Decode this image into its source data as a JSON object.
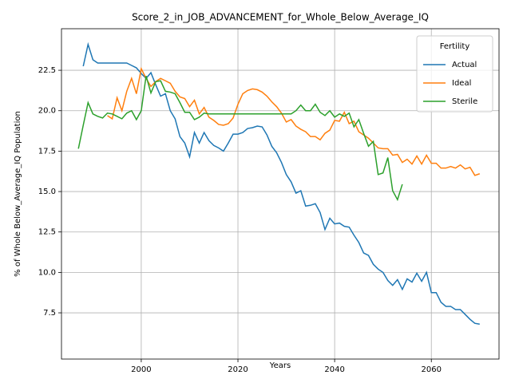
{
  "chart_data": {
    "type": "line",
    "title": "Score_2_in_JOB_ADVANCEMENT_for_Whole_Below_Average_IQ",
    "x_label": "Years",
    "y_label": "% of Whole Below_Average_IQ Population",
    "x": [
      1987,
      1988,
      1989,
      1990,
      1991,
      1992,
      1993,
      1994,
      1995,
      1996,
      1997,
      1998,
      1999,
      2000,
      2001,
      2002,
      2003,
      2004,
      2005,
      2006,
      2007,
      2008,
      2009,
      2010,
      2011,
      2012,
      2013,
      2014,
      2015,
      2016,
      2017,
      2018,
      2019,
      2020,
      2021,
      2022,
      2023,
      2024,
      2025,
      2026,
      2027,
      2028,
      2029,
      2030,
      2031,
      2032,
      2033,
      2034,
      2035,
      2036,
      2037,
      2038,
      2039,
      2040,
      2041,
      2042,
      2043,
      2044,
      2045,
      2046,
      2047,
      2048,
      2049,
      2050,
      2051,
      2052,
      2053,
      2054,
      2055,
      2056,
      2057,
      2058,
      2059,
      2060,
      2061,
      2062,
      2063,
      2064,
      2065,
      2066,
      2067,
      2068,
      2069,
      2070
    ],
    "series": [
      {
        "name": "Actual",
        "color": "#1f77b4",
        "values": [
          null,
          22.75,
          24.1,
          23.15,
          22.95,
          22.95,
          22.95,
          22.95,
          22.95,
          22.95,
          22.95,
          22.8,
          22.65,
          22.3,
          22.0,
          22.35,
          21.6,
          20.9,
          21.05,
          20.0,
          19.5,
          18.4,
          18.0,
          17.15,
          18.65,
          18.0,
          18.65,
          18.15,
          17.85,
          17.7,
          17.5,
          18.0,
          18.55,
          18.55,
          18.65,
          18.9,
          18.95,
          19.05,
          19.0,
          18.5,
          17.8,
          17.4,
          16.8,
          16.05,
          15.6,
          14.9,
          15.05,
          14.1,
          14.15,
          14.25,
          13.7,
          12.65,
          13.35,
          13.0,
          13.05,
          12.85,
          12.8,
          12.3,
          11.85,
          11.2,
          11.05,
          10.5,
          10.2,
          10.0,
          9.5,
          9.2,
          9.55,
          8.95,
          9.6,
          9.4,
          9.95,
          9.45,
          10.0,
          8.75,
          8.75,
          8.15,
          7.9,
          7.9,
          7.7,
          7.7,
          7.4,
          7.1,
          6.85,
          6.8
        ]
      },
      {
        "name": "Ideal",
        "color": "#ff7f0e",
        "values": [
          null,
          null,
          null,
          null,
          null,
          null,
          19.7,
          19.5,
          20.8,
          20.0,
          21.2,
          22.0,
          21.05,
          22.6,
          22.0,
          21.5,
          21.8,
          22.0,
          21.85,
          21.7,
          21.2,
          20.85,
          20.75,
          20.25,
          20.65,
          19.8,
          20.2,
          19.6,
          19.4,
          19.15,
          19.1,
          19.2,
          19.55,
          20.4,
          21.05,
          21.25,
          21.35,
          21.3,
          21.15,
          20.9,
          20.55,
          20.25,
          19.85,
          19.3,
          19.45,
          19.05,
          18.85,
          18.7,
          18.4,
          18.4,
          18.2,
          18.6,
          18.8,
          19.4,
          19.35,
          19.9,
          19.2,
          19.35,
          18.7,
          18.5,
          18.3,
          18.0,
          17.7,
          17.65,
          17.65,
          17.25,
          17.3,
          16.8,
          17.0,
          16.7,
          17.2,
          16.7,
          17.25,
          16.75,
          16.75,
          16.45,
          16.45,
          16.55,
          16.45,
          16.65,
          16.4,
          16.5,
          16.0,
          16.1
        ]
      },
      {
        "name": "Sterile",
        "color": "#2ca02c",
        "values": [
          17.65,
          19.1,
          20.5,
          19.8,
          19.65,
          19.55,
          19.85,
          19.8,
          19.65,
          19.5,
          19.85,
          20.0,
          19.45,
          20.0,
          22.15,
          21.1,
          21.8,
          21.85,
          21.2,
          21.15,
          21.05,
          20.5,
          19.9,
          19.9,
          19.45,
          19.6,
          19.85,
          19.8,
          19.8,
          19.8,
          19.8,
          19.8,
          19.8,
          19.8,
          19.8,
          19.8,
          19.8,
          19.8,
          19.8,
          19.8,
          19.8,
          19.8,
          19.8,
          19.8,
          19.8,
          20.0,
          20.35,
          20.0,
          20.0,
          20.4,
          19.9,
          19.7,
          20.0,
          19.6,
          19.8,
          19.65,
          19.85,
          19.0,
          19.45,
          18.6,
          17.8,
          18.1,
          16.05,
          16.15,
          17.1,
          15.05,
          14.5,
          15.45,
          null,
          null,
          null,
          null,
          null,
          null,
          null,
          null,
          null,
          null,
          null,
          null,
          null,
          null,
          null,
          null
        ]
      }
    ],
    "xlim": [
      1983.5,
      2074
    ],
    "ylim": [
      4.64,
      25.07
    ],
    "xticks": [
      2000,
      2020,
      2040,
      2060
    ],
    "yticks": [
      7.5,
      {
        "value": 10,
        "label": "10.0"
      },
      12.5,
      {
        "value": 15,
        "label": "15.0"
      },
      17.5,
      {
        "value": 20,
        "label": "20.0"
      },
      22.5
    ],
    "grid": true,
    "legend_title": "Fertility",
    "legend": "upper right"
  }
}
